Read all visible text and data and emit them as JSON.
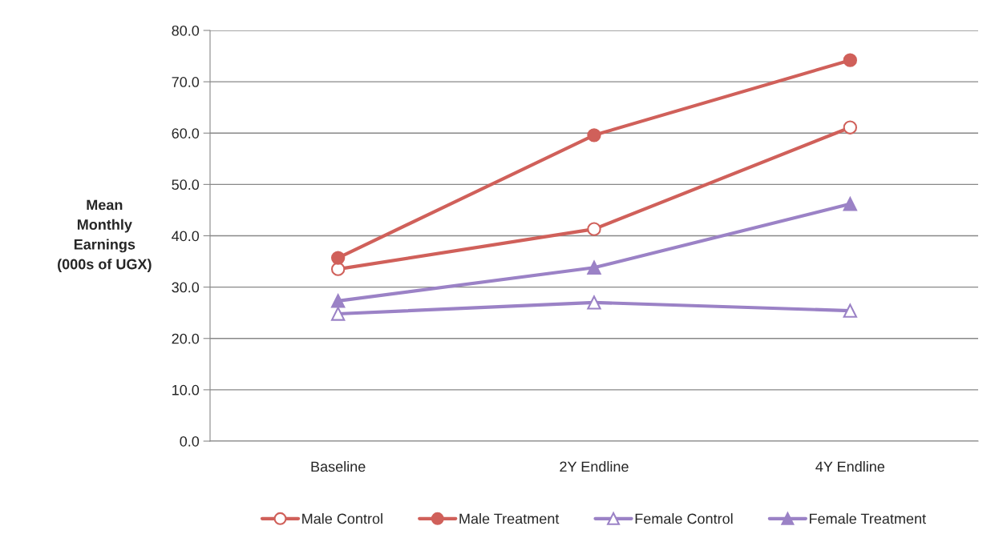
{
  "chart_data": {
    "type": "line",
    "ylabel": "Mean\nMonthly\nEarnings\n(000s of UGX)",
    "categories": [
      "Baseline",
      "2Y Endline",
      "4Y Endline"
    ],
    "series": [
      {
        "name": "Male Control",
        "color": "#d0605a",
        "marker": "circle",
        "values": [
          33.5,
          41.3,
          61.1
        ]
      },
      {
        "name": "Male Treatment",
        "color": "#d0605a",
        "marker": "circle",
        "values": [
          35.7,
          59.6,
          74.2
        ]
      },
      {
        "name": "Female Control",
        "color": "#9b82c6",
        "marker": "triangle",
        "values": [
          24.8,
          27.0,
          25.4
        ]
      },
      {
        "name": "Female Treatment",
        "color": "#9b82c6",
        "marker": "triangle",
        "values": [
          27.3,
          33.8,
          46.2
        ]
      }
    ],
    "ylim": [
      0,
      80
    ],
    "yticks": [
      {
        "value": 0,
        "label": "0.0"
      },
      {
        "value": 10,
        "label": "10.0"
      },
      {
        "value": 20,
        "label": "20.0"
      },
      {
        "value": 30,
        "label": "30.0"
      },
      {
        "value": 40,
        "label": "40.0"
      },
      {
        "value": 50,
        "label": "50.0"
      },
      {
        "value": 60,
        "label": "60.0"
      },
      {
        "value": 70,
        "label": "70.0"
      },
      {
        "value": 80,
        "label": "80.0"
      }
    ],
    "grid": "y",
    "legend": "bottom",
    "line_style": "solid"
  }
}
